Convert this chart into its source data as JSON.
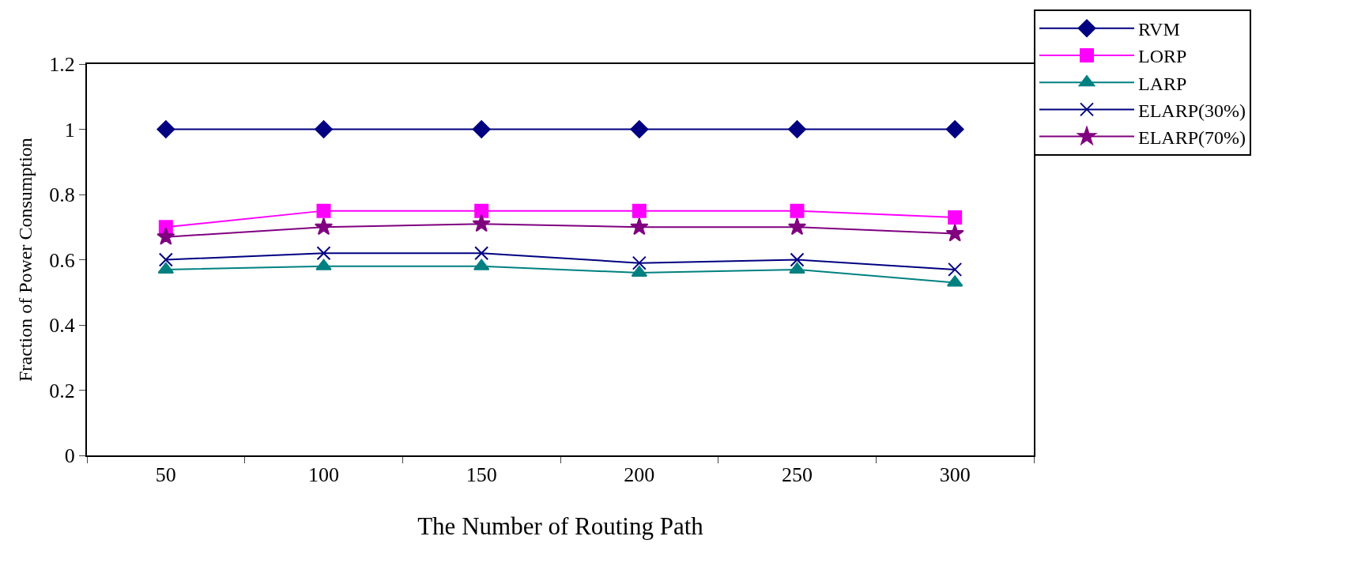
{
  "chart_data": {
    "type": "line",
    "xlabel": "The Number of Routing Path",
    "ylabel": "Fraction of Power Consumption",
    "categories": [
      "50",
      "100",
      "150",
      "200",
      "250",
      "300"
    ],
    "series": [
      {
        "name": "RVM",
        "color": "#000080",
        "marker": "diamond",
        "values": [
          1,
          1,
          1,
          1,
          1,
          1
        ]
      },
      {
        "name": "LORP",
        "color": "#ff00ff",
        "marker": "square",
        "values": [
          0.7,
          0.75,
          0.75,
          0.75,
          0.75,
          0.73
        ]
      },
      {
        "name": "LARP",
        "color": "#008080",
        "marker": "triangle",
        "values": [
          0.57,
          0.58,
          0.58,
          0.56,
          0.57,
          0.53
        ]
      },
      {
        "name": "ELARP(30%)",
        "color": "#000080",
        "marker": "cross",
        "values": [
          0.6,
          0.62,
          0.62,
          0.59,
          0.6,
          0.57
        ]
      },
      {
        "name": "ELARP(70%)",
        "color": "#800080",
        "marker": "star",
        "values": [
          0.67,
          0.7,
          0.71,
          0.7,
          0.7,
          0.68
        ]
      }
    ],
    "ylim": [
      0,
      1.2
    ],
    "yticks": [
      0,
      0.2,
      0.4,
      0.6,
      0.8,
      1,
      1.2
    ],
    "grid": false,
    "legend": "top right",
    "line_style": "solid"
  }
}
